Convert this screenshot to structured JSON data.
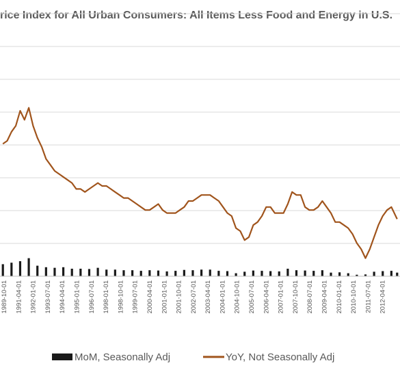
{
  "chart_data": {
    "type": "line",
    "title": "rice Index for All Urban Consumers: All Items Less Food and Energy in U.S.",
    "x_tick_labels": [
      "1989-10-01",
      "1991-04-01",
      "1992-01-01",
      "1993-07-01",
      "1994-04-01",
      "1995-01-01",
      "1996-07-01",
      "1998-01-01",
      "1998-10-01",
      "1999-07-01",
      "2000-04-01",
      "2001-01-01",
      "2001-10-01",
      "2002-07-01",
      "2003-04-01",
      "2004-01-01",
      "2004-10-01",
      "2005-07-01",
      "2006-04-01",
      "2007-01-01",
      "2007-10-01",
      "2008-07-01",
      "2009-04-01",
      "2010-01-01",
      "2010-10-01",
      "2011-07-01",
      "2012-04-01"
    ],
    "y_gridlines": 8,
    "legend_position": "bottom",
    "series": [
      {
        "name": "MoM, Seasonally Adj",
        "kind": "bar",
        "color": "#1a1a1a",
        "x": [
          "1989-10",
          "1990-04",
          "1990-10",
          "1991-04",
          "1991-10",
          "1992-04",
          "1992-10",
          "1993-04",
          "1993-10",
          "1994-04",
          "1994-10",
          "1995-04",
          "1995-10",
          "1996-04",
          "1996-10",
          "1997-04",
          "1997-10",
          "1998-04",
          "1998-10",
          "1999-04",
          "1999-10",
          "2000-04",
          "2000-10",
          "2001-04",
          "2001-10",
          "2002-04",
          "2002-10",
          "2003-04",
          "2003-10",
          "2004-04",
          "2004-10",
          "2005-04",
          "2005-10",
          "2006-04",
          "2006-10",
          "2007-04",
          "2007-10",
          "2008-04",
          "2008-10",
          "2009-04",
          "2009-10",
          "2010-04",
          "2010-10",
          "2011-04",
          "2011-10",
          "2012-04",
          "2012-08"
        ],
        "values": [
          0.4,
          0.45,
          0.5,
          0.6,
          0.35,
          0.3,
          0.28,
          0.3,
          0.25,
          0.25,
          0.24,
          0.28,
          0.22,
          0.22,
          0.2,
          0.2,
          0.18,
          0.2,
          0.19,
          0.16,
          0.18,
          0.21,
          0.2,
          0.22,
          0.22,
          0.18,
          0.17,
          0.1,
          0.15,
          0.19,
          0.18,
          0.17,
          0.16,
          0.25,
          0.2,
          0.19,
          0.18,
          0.2,
          0.12,
          0.13,
          0.1,
          0.05,
          0.06,
          0.15,
          0.17,
          0.18,
          0.12
        ]
      },
      {
        "name": "YoY, Not Seasonally Adj",
        "kind": "line",
        "color": "#a0541c",
        "x": [
          "1989-10",
          "1990-01",
          "1990-04",
          "1990-07",
          "1990-10",
          "1991-01",
          "1991-04",
          "1991-07",
          "1991-10",
          "1992-01",
          "1992-04",
          "1992-07",
          "1992-10",
          "1993-01",
          "1993-04",
          "1993-07",
          "1993-10",
          "1994-01",
          "1994-04",
          "1994-07",
          "1994-10",
          "1995-01",
          "1995-04",
          "1995-07",
          "1995-10",
          "1996-01",
          "1996-04",
          "1996-07",
          "1996-10",
          "1997-01",
          "1997-04",
          "1997-07",
          "1997-10",
          "1998-01",
          "1998-04",
          "1998-07",
          "1998-10",
          "1999-01",
          "1999-04",
          "1999-07",
          "1999-10",
          "2000-01",
          "2000-04",
          "2000-07",
          "2000-10",
          "2001-01",
          "2001-04",
          "2001-07",
          "2001-10",
          "2002-01",
          "2002-04",
          "2002-07",
          "2002-10",
          "2003-01",
          "2003-04",
          "2003-07",
          "2003-10",
          "2004-01",
          "2004-04",
          "2004-07",
          "2004-10",
          "2005-01",
          "2005-04",
          "2005-07",
          "2005-10",
          "2006-01",
          "2006-04",
          "2006-07",
          "2006-10",
          "2007-01",
          "2007-04",
          "2007-07",
          "2007-10",
          "2008-01",
          "2008-04",
          "2008-07",
          "2008-10",
          "2009-01",
          "2009-04",
          "2009-07",
          "2009-10",
          "2010-01",
          "2010-04",
          "2010-07",
          "2010-10",
          "2011-01",
          "2011-04",
          "2011-07",
          "2011-10",
          "2012-01",
          "2012-04",
          "2012-08"
        ],
        "values": [
          4.4,
          4.5,
          4.8,
          5.0,
          5.5,
          5.2,
          5.6,
          5.0,
          4.6,
          4.3,
          3.9,
          3.7,
          3.5,
          3.4,
          3.3,
          3.2,
          3.1,
          2.9,
          2.9,
          2.8,
          2.9,
          3.0,
          3.1,
          3.0,
          3.0,
          2.9,
          2.8,
          2.7,
          2.6,
          2.6,
          2.5,
          2.4,
          2.3,
          2.2,
          2.2,
          2.3,
          2.4,
          2.2,
          2.1,
          2.1,
          2.1,
          2.2,
          2.3,
          2.5,
          2.5,
          2.6,
          2.7,
          2.7,
          2.7,
          2.6,
          2.5,
          2.3,
          2.1,
          2.0,
          1.6,
          1.5,
          1.2,
          1.3,
          1.7,
          1.8,
          2.0,
          2.3,
          2.3,
          2.1,
          2.1,
          2.1,
          2.4,
          2.8,
          2.7,
          2.7,
          2.3,
          2.2,
          2.2,
          2.3,
          2.5,
          2.3,
          2.1,
          1.8,
          1.8,
          1.7,
          1.6,
          1.4,
          1.1,
          0.9,
          0.6,
          0.9,
          1.3,
          1.7,
          2.0,
          2.2,
          2.3,
          1.9
        ]
      }
    ]
  }
}
